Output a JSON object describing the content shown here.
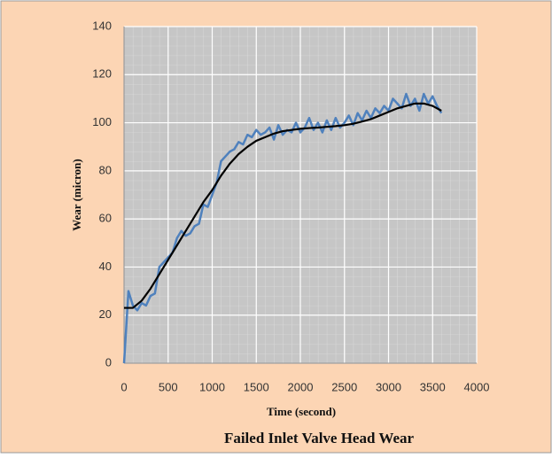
{
  "chart_data": {
    "type": "line",
    "title": "Failed Inlet Valve Head Wear",
    "x_label": "Time (second)",
    "y_label": "Wear (micron)",
    "xlim": [
      0,
      4000
    ],
    "xticks": [
      0,
      500,
      1000,
      1500,
      2000,
      2500,
      3000,
      3500,
      4000
    ],
    "ylim": [
      0,
      140
    ],
    "yticks": [
      0,
      20,
      40,
      60,
      80,
      100,
      120,
      140
    ],
    "grid": true,
    "series": [
      {
        "color": "#4f81bd",
        "x": [
          0,
          50,
          100,
          150,
          200,
          250,
          300,
          350,
          400,
          450,
          500,
          550,
          600,
          650,
          700,
          750,
          800,
          850,
          900,
          950,
          1000,
          1050,
          1100,
          1150,
          1200,
          1250,
          1300,
          1350,
          1400,
          1450,
          1500,
          1550,
          1600,
          1650,
          1700,
          1750,
          1800,
          1850,
          1900,
          1950,
          2000,
          2050,
          2100,
          2150,
          2200,
          2250,
          2300,
          2350,
          2400,
          2450,
          2500,
          2550,
          2600,
          2650,
          2700,
          2750,
          2800,
          2850,
          2900,
          2950,
          3000,
          3050,
          3100,
          3150,
          3200,
          3250,
          3300,
          3350,
          3400,
          3450,
          3500,
          3550,
          3600
        ],
        "values": [
          0,
          30,
          24,
          22,
          25,
          24,
          28,
          29,
          40,
          42,
          44,
          46,
          52,
          55,
          53,
          54,
          57,
          58,
          66,
          65,
          70,
          75,
          84,
          86,
          88,
          89,
          92,
          91,
          95,
          94,
          97,
          95,
          96,
          98,
          93,
          99,
          95,
          97,
          96,
          100,
          96,
          98,
          102,
          97,
          100,
          96,
          101,
          97,
          102,
          98,
          100,
          103,
          99,
          104,
          101,
          105,
          102,
          106,
          104,
          107,
          105,
          110,
          108,
          106,
          112,
          107,
          110,
          105,
          112,
          108,
          111,
          107,
          104
        ]
      },
      {
        "color": "#000000",
        "x": [
          0,
          100,
          200,
          300,
          400,
          500,
          600,
          700,
          800,
          900,
          1000,
          1100,
          1200,
          1300,
          1400,
          1500,
          1600,
          1700,
          1800,
          1900,
          2000,
          2100,
          2200,
          2300,
          2400,
          2500,
          2600,
          2700,
          2800,
          2900,
          3000,
          3100,
          3200,
          3300,
          3400,
          3500,
          3600
        ],
        "values": [
          23,
          23,
          26,
          31,
          37,
          43,
          49,
          55,
          61,
          67,
          72,
          78,
          83,
          87,
          90,
          92.5,
          94,
          95.5,
          96.5,
          97,
          97.5,
          97.8,
          98,
          98.3,
          98.6,
          99,
          99.6,
          100.5,
          101.5,
          103,
          104.5,
          106,
          107,
          108,
          108,
          107,
          105
        ]
      }
    ]
  }
}
